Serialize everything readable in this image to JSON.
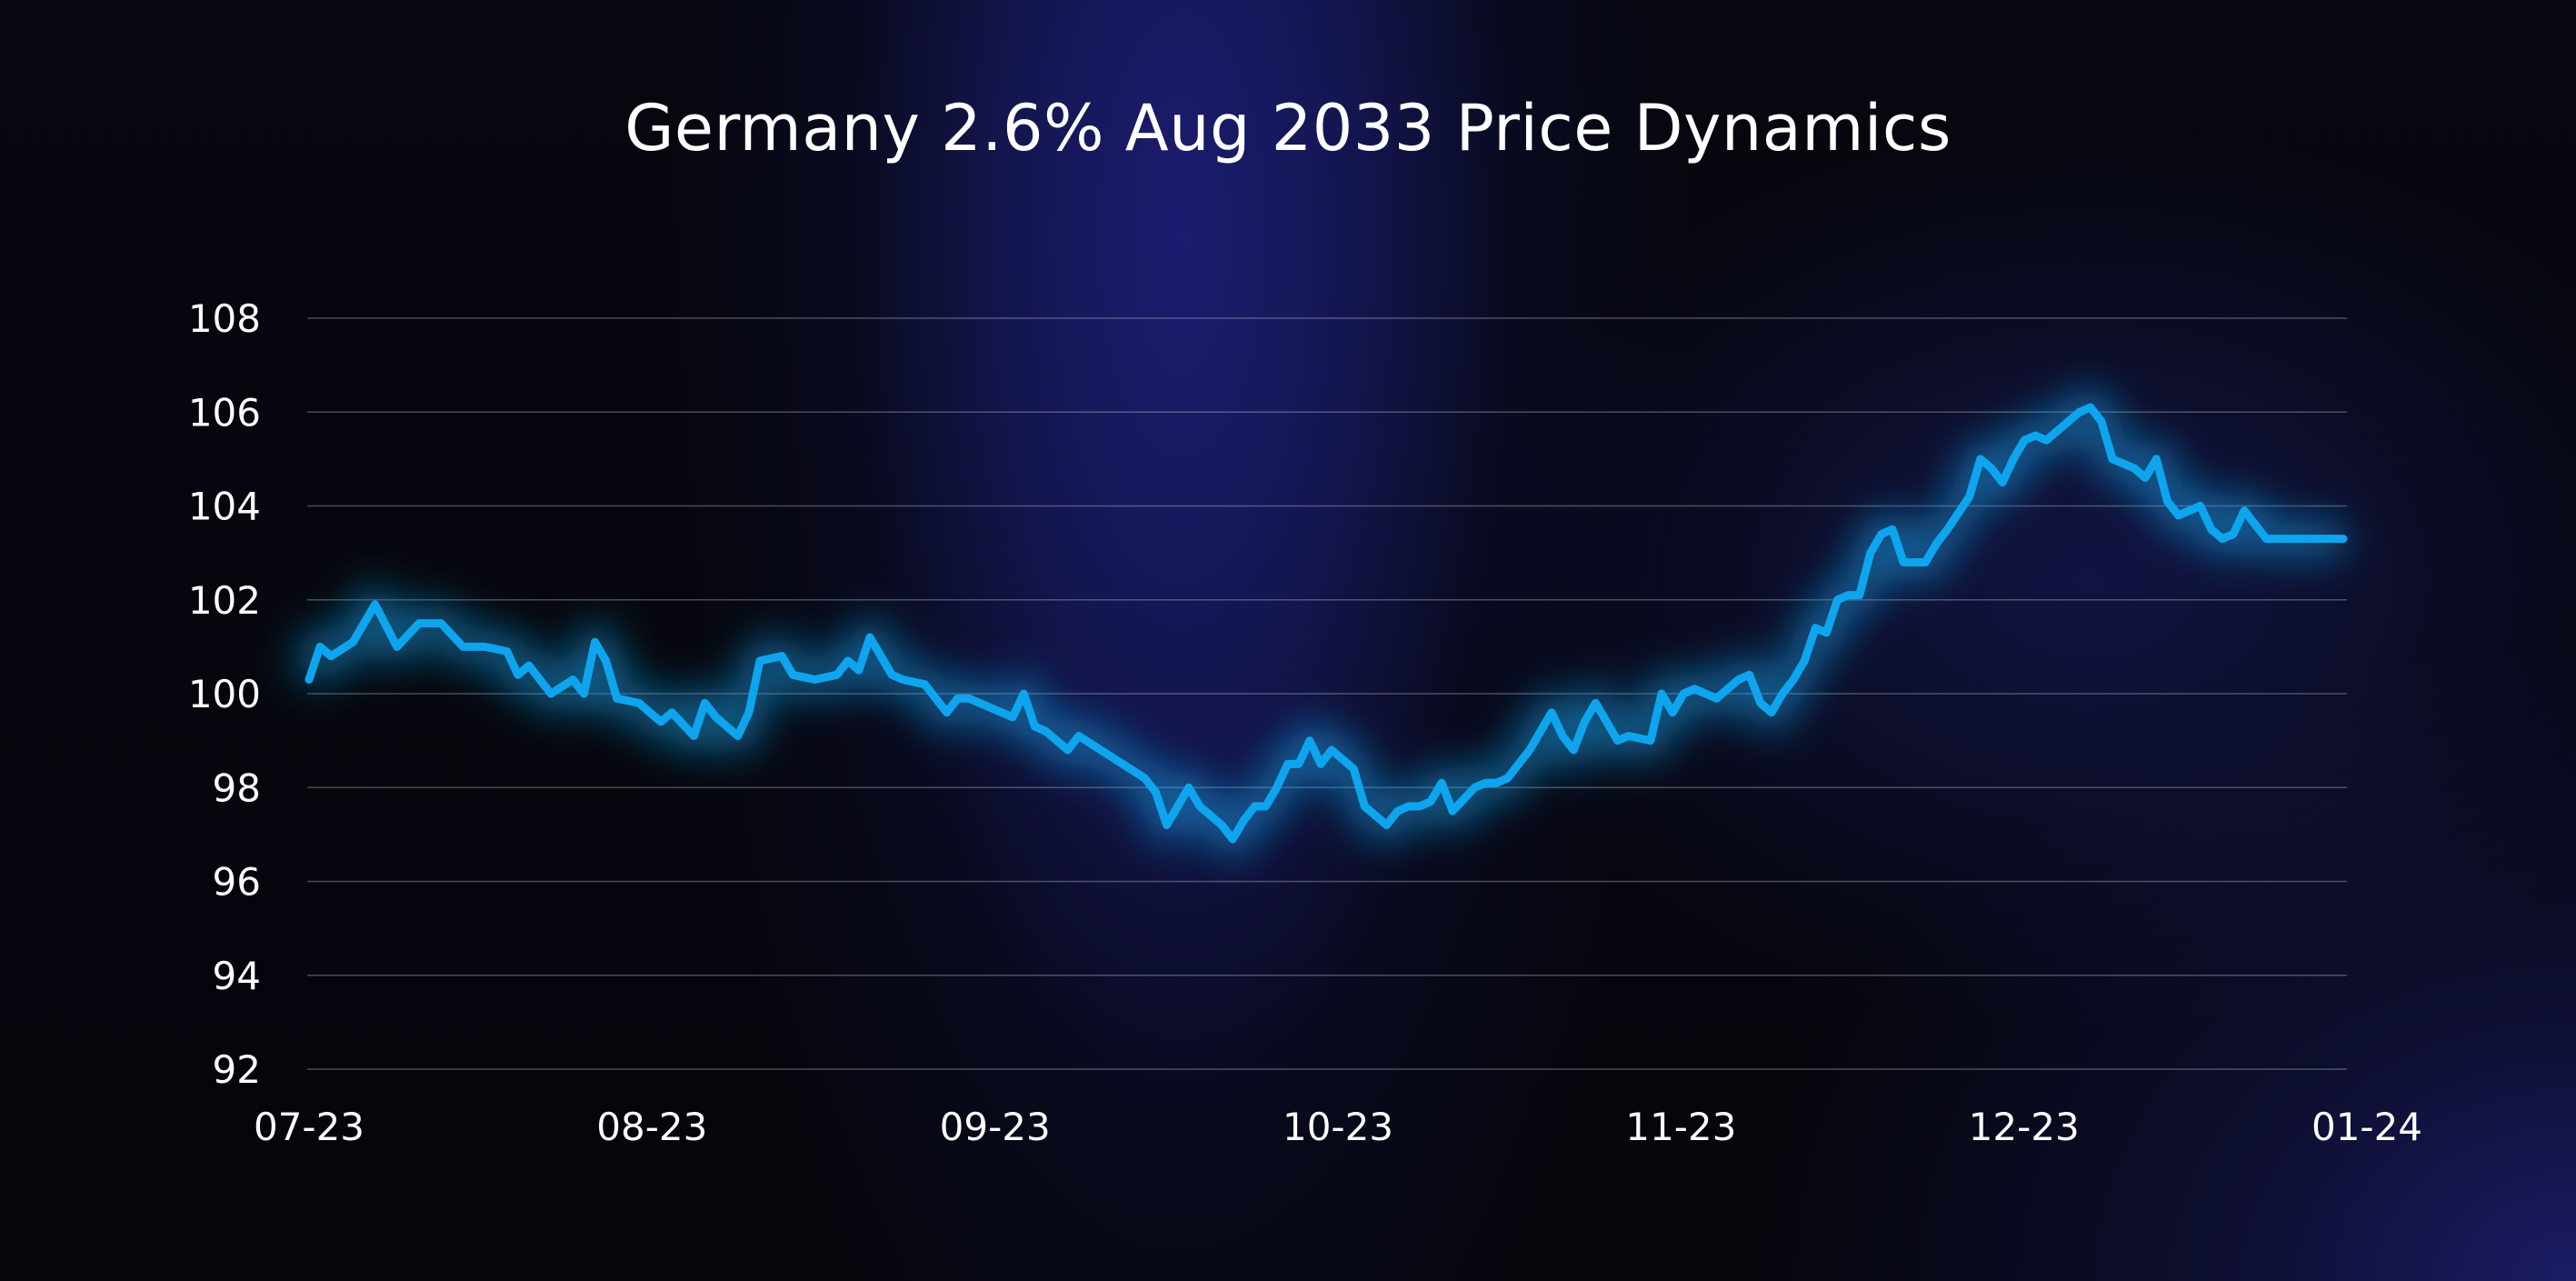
{
  "chart_data": {
    "type": "line",
    "title": "Germany 2.6% Aug 2033 Price Dynamics",
    "xlabel": "",
    "ylabel": "",
    "ylim": [
      92,
      108
    ],
    "y_ticks": [
      "92",
      "94",
      "96",
      "98",
      "100",
      "102",
      "104",
      "106",
      "108"
    ],
    "x_ticks": [
      "07-23",
      "08-23",
      "09-23",
      "10-23",
      "11-23",
      "12-23",
      "01-24"
    ],
    "grid": "horizontal",
    "line_color": "#0ea5ee",
    "series": [
      {
        "x": [
          0,
          1,
          2,
          4,
          6,
          8,
          10,
          12,
          14,
          16,
          18,
          19,
          20,
          22,
          24,
          25,
          26,
          27,
          28,
          30,
          31,
          32,
          33,
          35,
          36,
          37,
          39,
          40,
          41,
          43,
          44,
          46,
          48,
          49,
          50,
          51,
          53,
          54,
          56,
          58,
          59,
          60,
          62,
          63,
          64,
          65,
          66,
          67,
          68,
          69,
          70,
          72,
          74,
          76,
          77,
          78,
          80,
          81,
          83,
          84,
          85,
          86,
          87,
          88,
          89,
          90,
          91,
          92,
          93,
          95,
          96,
          98,
          99,
          100,
          101,
          102,
          103,
          104,
          106,
          107,
          108,
          109,
          110,
          111,
          113,
          114,
          115,
          116,
          117,
          118,
          119,
          120,
          122,
          123,
          124,
          125,
          126,
          127,
          128,
          130,
          131,
          132,
          133,
          134,
          135,
          136,
          137,
          138,
          139,
          140,
          141,
          142,
          143,
          144,
          145,
          146,
          147,
          148,
          149,
          151,
          152,
          153,
          154,
          155,
          156,
          157,
          158,
          159,
          160,
          161,
          162,
          163,
          164,
          165,
          166,
          167,
          168,
          169,
          170,
          171,
          172,
          173,
          174,
          175,
          176,
          177,
          178,
          179,
          180,
          181,
          182,
          183,
          184,
          185
        ],
        "values": [
          100.3,
          101.0,
          100.8,
          101.1,
          101.9,
          101.0,
          101.5,
          101.5,
          101.0,
          101.0,
          100.9,
          100.4,
          100.6,
          100.0,
          100.3,
          100.0,
          101.1,
          100.7,
          99.9,
          99.8,
          99.6,
          99.4,
          99.6,
          99.1,
          99.8,
          99.5,
          99.1,
          99.6,
          100.7,
          100.8,
          100.4,
          100.3,
          100.4,
          100.7,
          100.5,
          101.2,
          100.4,
          100.3,
          100.2,
          99.6,
          99.9,
          99.9,
          99.7,
          99.6,
          99.5,
          100.0,
          99.3,
          99.2,
          99.0,
          98.8,
          99.1,
          98.8,
          98.5,
          98.2,
          97.9,
          97.2,
          98.0,
          97.6,
          97.2,
          96.9,
          97.3,
          97.6,
          97.6,
          98.0,
          98.5,
          98.5,
          99.0,
          98.5,
          98.8,
          98.4,
          97.6,
          97.2,
          97.5,
          97.6,
          97.6,
          97.7,
          98.1,
          97.5,
          98.0,
          98.1,
          98.1,
          98.2,
          98.5,
          98.8,
          99.6,
          99.1,
          98.8,
          99.4,
          99.8,
          99.4,
          99.0,
          99.1,
          99.0,
          100.0,
          99.6,
          100.0,
          100.1,
          100.0,
          99.9,
          100.3,
          100.4,
          99.8,
          99.6,
          100.0,
          100.3,
          100.7,
          101.4,
          101.3,
          102.0,
          102.1,
          102.1,
          103.0,
          103.4,
          103.5,
          102.8,
          102.8,
          102.8,
          103.2,
          103.5,
          104.2,
          105.0,
          104.8,
          104.5,
          105.0,
          105.4,
          105.5,
          105.4,
          105.6,
          105.8,
          106.0,
          106.1,
          105.8,
          105.0,
          104.9,
          104.8,
          104.6,
          105.0,
          104.1,
          103.8,
          103.9,
          104.0,
          103.5,
          103.3,
          103.4,
          103.9,
          103.6,
          103.3,
          103.3,
          103.3,
          103.3,
          103.3,
          103.3,
          103.3,
          103.3
        ]
      }
    ]
  }
}
